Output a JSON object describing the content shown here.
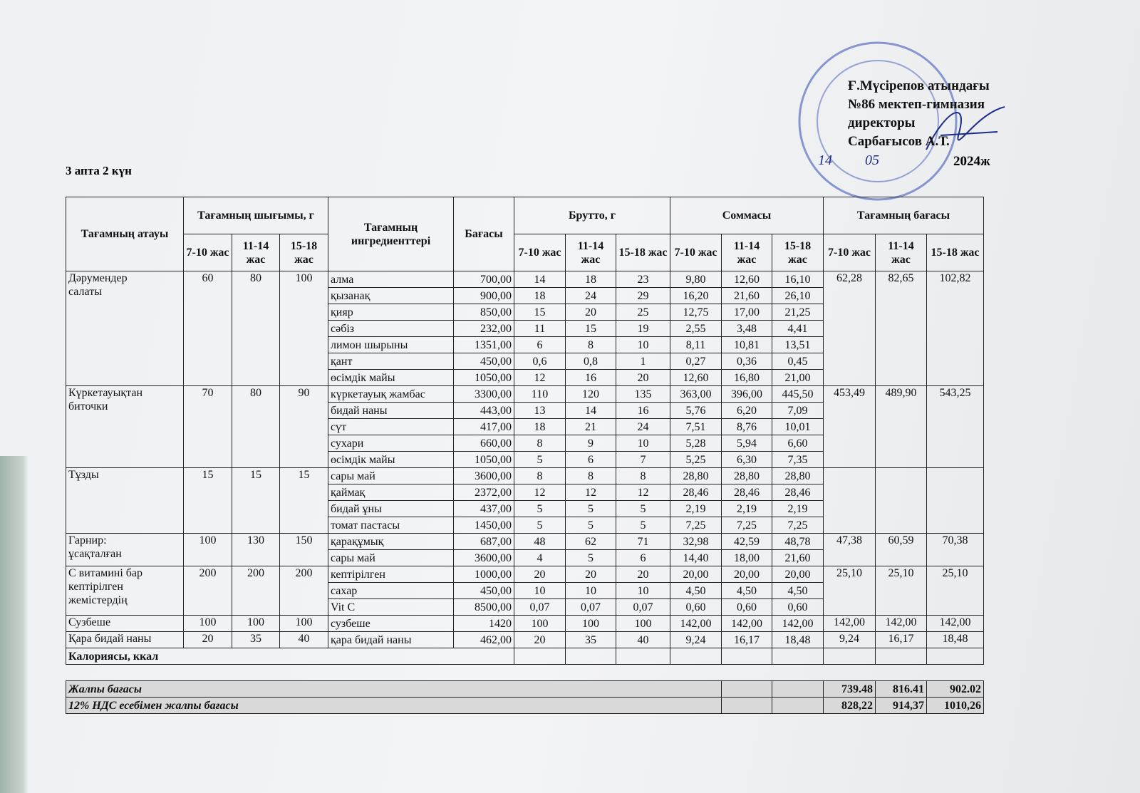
{
  "approval": {
    "lines": [
      "Ғ.Мүсірепов атындағы",
      "№86 мектеп-гимназия",
      "директоры",
      "Сарбағысов А.Т."
    ],
    "date": {
      "day": "14",
      "month": "05",
      "year": "2024ж"
    }
  },
  "day_label": "3 апта 2 күн",
  "table": {
    "headers": {
      "name": "Тағамның атауы",
      "yield": "Тағамның шығымы, г",
      "ingredients": "Тағамның ингредиенттері",
      "price": "Бағасы",
      "brutto": "Брутто, г",
      "sum": "Соммасы",
      "dish_price": "Тағамның бағасы",
      "ages": [
        "7-10 жас",
        "11-14 жас",
        "15-18 жас"
      ]
    },
    "groups": [
      {
        "name": "Дәрумендер салаты",
        "yield": [
          60,
          80,
          100
        ],
        "dish_price": [
          "62,28",
          "82,65",
          "102,82"
        ],
        "items": [
          [
            "алма",
            "700,00",
            14,
            18,
            23,
            "9,80",
            "12,60",
            "16,10"
          ],
          [
            "қызанақ",
            "900,00",
            18,
            24,
            29,
            "16,20",
            "21,60",
            "26,10"
          ],
          [
            "қияр",
            "850,00",
            15,
            20,
            25,
            "12,75",
            "17,00",
            "21,25"
          ],
          [
            "сәбіз",
            "232,00",
            11,
            15,
            19,
            "2,55",
            "3,48",
            "4,41"
          ],
          [
            "лимон шырыны",
            "1351,00",
            6,
            8,
            10,
            "8,11",
            "10,81",
            "13,51"
          ],
          [
            "қант",
            "450,00",
            "0,6",
            "0,8",
            1,
            "0,27",
            "0,36",
            "0,45"
          ],
          [
            "өсімдік майы",
            "1050,00",
            12,
            16,
            20,
            "12,60",
            "16,80",
            "21,00"
          ]
        ]
      },
      {
        "name": "Күркетауықтан биточки",
        "yield": [
          70,
          80,
          90
        ],
        "dish_price": [
          "453,49",
          "489,90",
          "543,25"
        ],
        "items": [
          [
            "күркетауық жамбас",
            "3300,00",
            110,
            120,
            135,
            "363,00",
            "396,00",
            "445,50"
          ],
          [
            "бидай наны",
            "443,00",
            13,
            14,
            16,
            "5,76",
            "6,20",
            "7,09"
          ],
          [
            "сүт",
            "417,00",
            18,
            21,
            24,
            "7,51",
            "8,76",
            "10,01"
          ],
          [
            "сухари",
            "660,00",
            8,
            9,
            10,
            "5,28",
            "5,94",
            "6,60"
          ],
          [
            "өсімдік майы",
            "1050,00",
            5,
            6,
            7,
            "5,25",
            "6,30",
            "7,35"
          ]
        ]
      },
      {
        "name": "Тұзды",
        "yield": [
          15,
          15,
          15
        ],
        "dish_price": [],
        "items": [
          [
            "сары май",
            "3600,00",
            8,
            8,
            8,
            "28,80",
            "28,80",
            "28,80"
          ],
          [
            "қаймақ",
            "2372,00",
            12,
            12,
            12,
            "28,46",
            "28,46",
            "28,46"
          ],
          [
            "бидай ұны",
            "437,00",
            5,
            5,
            5,
            "2,19",
            "2,19",
            "2,19"
          ],
          [
            "томат пастасы",
            "1450,00",
            5,
            5,
            5,
            "7,25",
            "7,25",
            "7,25"
          ]
        ]
      },
      {
        "name": "Гарнир: ұсақталған",
        "yield": [
          100,
          130,
          150
        ],
        "dish_price": [
          "47,38",
          "60,59",
          "70,38"
        ],
        "items": [
          [
            "қарақұмық",
            "687,00",
            48,
            62,
            71,
            "32,98",
            "42,59",
            "48,78"
          ],
          [
            "сары май",
            "3600,00",
            4,
            5,
            6,
            "14,40",
            "18,00",
            "21,60"
          ]
        ]
      },
      {
        "name": "С витамині бар кептірілген жемістердің",
        "yield": [
          200,
          200,
          200
        ],
        "dish_price": [
          "25,10",
          "25,10",
          "25,10"
        ],
        "items": [
          [
            "кептірілген",
            "1000,00",
            20,
            20,
            20,
            "20,00",
            "20,00",
            "20,00"
          ],
          [
            "сахар",
            "450,00",
            10,
            10,
            10,
            "4,50",
            "4,50",
            "4,50"
          ],
          [
            "Vit C",
            "8500,00",
            "0,07",
            "0,07",
            "0,07",
            "0,60",
            "0,60",
            "0,60"
          ]
        ]
      },
      {
        "name": "Сузбеше",
        "yield": [
          100,
          100,
          100
        ],
        "dish_price": [
          "142,00",
          "142,00",
          "142,00"
        ],
        "items": [
          [
            "сузбеше",
            1420,
            100,
            100,
            100,
            "142,00",
            "142,00",
            "142,00"
          ]
        ]
      },
      {
        "name": "Қара бидай наны",
        "yield": [
          20,
          35,
          40
        ],
        "dish_price": [
          "9,24",
          "16,17",
          "18,48"
        ],
        "items": [
          [
            "қара бидай наны",
            "462,00",
            20,
            35,
            40,
            "9,24",
            "16,17",
            "18,48"
          ]
        ]
      }
    ],
    "calories": "Калориясы, ккал",
    "totals": [
      {
        "label": "Жалпы бағасы",
        "values": [
          "739.48",
          "816.41",
          "902.02"
        ]
      },
      {
        "label": "12% НДС есебімен жалпы бағасы",
        "values": [
          "828,22",
          "914,37",
          "1010,26"
        ]
      }
    ]
  }
}
